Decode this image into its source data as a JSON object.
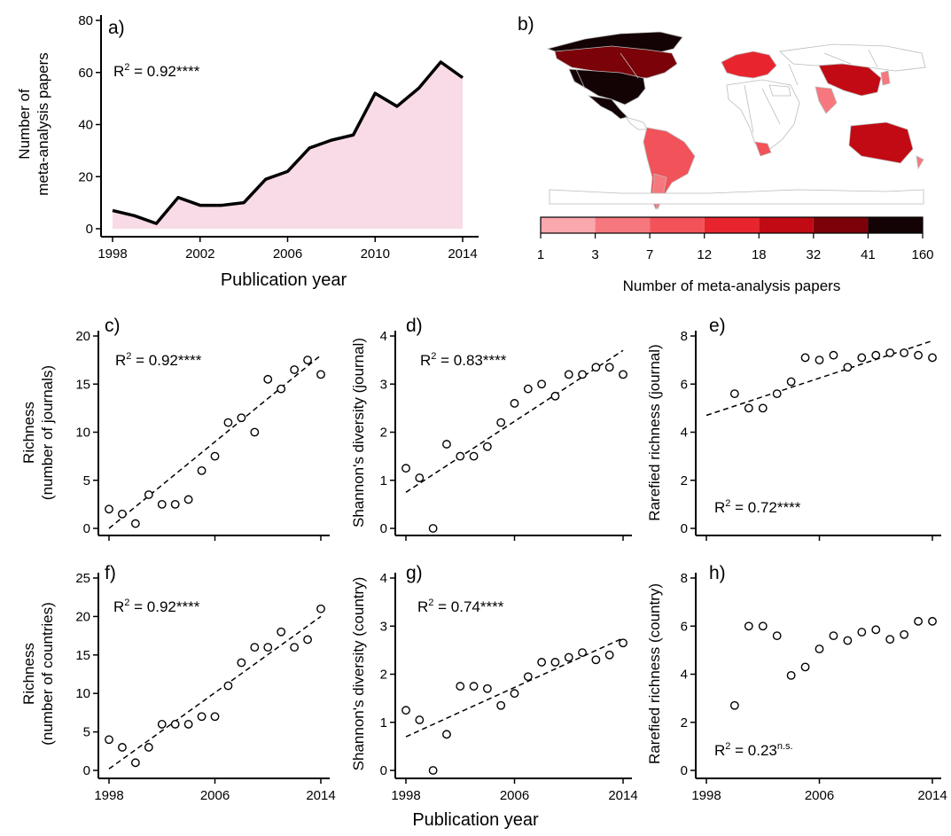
{
  "colors": {
    "area_fill": "#f8dbe6",
    "line": "#000000",
    "ocean": "#ffffff",
    "land_default": "#ffffff",
    "border": "#bbbbbb",
    "legend": [
      "#f9a8ad",
      "#f7777e",
      "#f25259",
      "#e8252e",
      "#c10a14",
      "#7a0208",
      "#140305"
    ]
  },
  "x_label": "Publication year",
  "legend_b": {
    "title": "Number of meta-analysis papers",
    "ticks": [
      "1",
      "3",
      "7",
      "12",
      "18",
      "32",
      "41",
      "160"
    ]
  },
  "chart_data": [
    {
      "panel": "a)",
      "type": "area",
      "annotation": "R² = 0.92****",
      "ylabel_lines": [
        "Number of",
        "meta-analysis papers"
      ],
      "xlabel": "Publication year",
      "xlim": [
        1998,
        2014
      ],
      "ylim": [
        0,
        80
      ],
      "xticks": [
        1998,
        2002,
        2006,
        2010,
        2014
      ],
      "yticks": [
        0,
        20,
        40,
        60,
        80
      ],
      "x": [
        1998,
        1999,
        2000,
        2001,
        2002,
        2003,
        2004,
        2005,
        2006,
        2007,
        2008,
        2009,
        2010,
        2011,
        2012,
        2013,
        2014
      ],
      "y": [
        7,
        5,
        2,
        12,
        9,
        9,
        10,
        19,
        22,
        31,
        34,
        36,
        52,
        47,
        54,
        64,
        58
      ]
    },
    {
      "panel": "b)",
      "type": "map",
      "legend_title": "Number of meta-analysis papers",
      "classes": [
        "1",
        "3",
        "7",
        "12",
        "18",
        "32",
        "41",
        "160"
      ]
    },
    {
      "panel": "c)",
      "type": "scatter",
      "annotation": "R² = 0.92****",
      "ylabel_lines": [
        "Richness",
        "(number of journals)"
      ],
      "xlim": [
        1998,
        2014
      ],
      "ylim": [
        0,
        20
      ],
      "yticks": [
        0,
        5,
        10,
        15,
        20
      ],
      "xticks": [],
      "x": [
        1998,
        1999,
        2000,
        2001,
        2002,
        2003,
        2004,
        2005,
        2006,
        2007,
        2008,
        2009,
        2010,
        2011,
        2012,
        2013,
        2014
      ],
      "y": [
        2,
        1.5,
        0.5,
        3.5,
        2.5,
        2.5,
        3,
        6,
        7.5,
        11,
        11.5,
        10,
        15.5,
        14.5,
        16.5,
        17.5,
        16
      ],
      "trend": [
        [
          1998,
          0
        ],
        [
          2014,
          18
        ]
      ]
    },
    {
      "panel": "d)",
      "type": "scatter",
      "annotation": "R² = 0.83****",
      "ylabel_lines": [
        "Shannon's diversity (journal)"
      ],
      "xlim": [
        1998,
        2014
      ],
      "ylim": [
        0,
        4
      ],
      "yticks": [
        0,
        1,
        2,
        3,
        4
      ],
      "xticks": [],
      "x": [
        1998,
        1999,
        2000,
        2001,
        2002,
        2003,
        2004,
        2005,
        2006,
        2007,
        2008,
        2009,
        2010,
        2011,
        2012,
        2013,
        2014
      ],
      "y": [
        1.25,
        1.05,
        0,
        1.75,
        1.5,
        1.5,
        1.7,
        2.2,
        2.6,
        2.9,
        3.0,
        2.75,
        3.2,
        3.2,
        3.35,
        3.35,
        3.2
      ],
      "trend": [
        [
          1998,
          0.75
        ],
        [
          2014,
          3.7
        ]
      ]
    },
    {
      "panel": "e)",
      "type": "scatter",
      "annotation": "R² = 0.72****",
      "ylabel_lines": [
        "Rarefied richness (journal)"
      ],
      "xlim": [
        1998,
        2014
      ],
      "ylim": [
        0,
        8
      ],
      "yticks": [
        0,
        2,
        4,
        6,
        8
      ],
      "xticks": [],
      "x": [
        2000,
        2001,
        2002,
        2003,
        2004,
        2005,
        2006,
        2007,
        2008,
        2009,
        2010,
        2011,
        2012,
        2013,
        2014
      ],
      "y": [
        5.6,
        5.0,
        5.0,
        5.6,
        6.1,
        7.1,
        7.0,
        7.2,
        6.7,
        7.1,
        7.2,
        7.3,
        7.3,
        7.2,
        7.1
      ],
      "trend": [
        [
          1998,
          4.7
        ],
        [
          2014,
          7.8
        ]
      ]
    },
    {
      "panel": "f)",
      "type": "scatter",
      "annotation": "R² = 0.92****",
      "ylabel_lines": [
        "Richness",
        "(number of countries)"
      ],
      "xlim": [
        1998,
        2014
      ],
      "ylim": [
        0,
        25
      ],
      "yticks": [
        0,
        5,
        10,
        15,
        20,
        25
      ],
      "xticks": [
        1998,
        2006,
        2014
      ],
      "x": [
        1998,
        1999,
        2000,
        2001,
        2002,
        2003,
        2004,
        2005,
        2006,
        2007,
        2008,
        2009,
        2010,
        2011,
        2012,
        2013,
        2014
      ],
      "y": [
        4,
        3,
        1,
        3,
        6,
        6,
        6,
        7,
        7,
        11,
        14,
        16,
        16,
        18,
        16,
        17,
        21
      ],
      "trend": [
        [
          1998,
          0.2
        ],
        [
          2014,
          20
        ]
      ]
    },
    {
      "panel": "g)",
      "type": "scatter",
      "annotation": "R² = 0.74****",
      "ylabel_lines": [
        "Shannon's diversity (country)"
      ],
      "xlim": [
        1998,
        2014
      ],
      "ylim": [
        0,
        4
      ],
      "yticks": [
        0,
        1,
        2,
        3,
        4
      ],
      "xticks": [
        1998,
        2006,
        2014
      ],
      "x": [
        1998,
        1999,
        2000,
        2001,
        2002,
        2003,
        2004,
        2005,
        2006,
        2007,
        2008,
        2009,
        2010,
        2011,
        2012,
        2013,
        2014
      ],
      "y": [
        1.25,
        1.05,
        0,
        0.75,
        1.75,
        1.75,
        1.7,
        1.35,
        1.6,
        1.95,
        2.25,
        2.25,
        2.35,
        2.45,
        2.3,
        2.4,
        2.65
      ],
      "trend": [
        [
          1998,
          0.7
        ],
        [
          2014,
          2.75
        ]
      ]
    },
    {
      "panel": "h)",
      "type": "scatter",
      "annotation": "R² = 0.23",
      "annotation_sup": "n.s.",
      "ylabel_lines": [
        "Rarefied richness (country)"
      ],
      "xlim": [
        1998,
        2014
      ],
      "ylim": [
        0,
        8
      ],
      "yticks": [
        0,
        2,
        4,
        6,
        8
      ],
      "xticks": [
        1998,
        2006,
        2014
      ],
      "x": [
        2000,
        2001,
        2002,
        2003,
        2004,
        2005,
        2006,
        2007,
        2008,
        2009,
        2010,
        2011,
        2012,
        2013,
        2014
      ],
      "y": [
        2.7,
        6.0,
        6.0,
        5.6,
        3.95,
        4.3,
        5.05,
        5.6,
        5.4,
        5.75,
        5.85,
        5.45,
        5.65,
        6.2,
        6.2
      ]
    }
  ]
}
